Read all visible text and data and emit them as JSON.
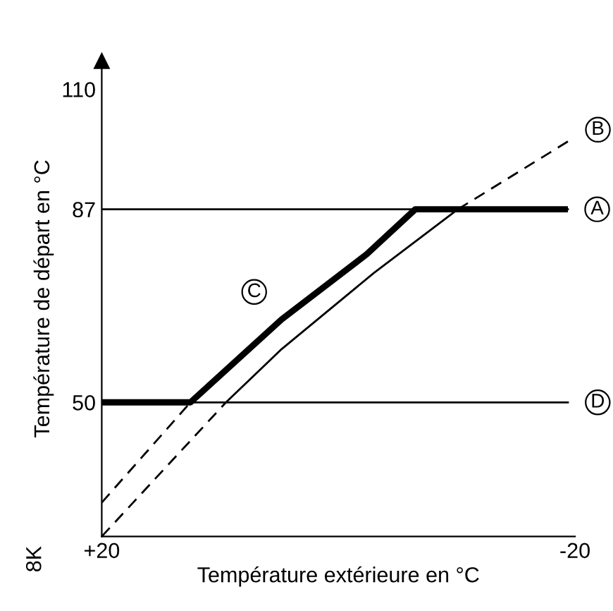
{
  "chart_data": {
    "type": "line",
    "xlabel": "Température extérieure en °C",
    "ylabel": "Température de départ en °C",
    "xlim": [
      20,
      -20
    ],
    "ylim": [
      24.3,
      115.4
    ],
    "xticks": [
      {
        "value": 20,
        "label": "+20"
      },
      -20
    ],
    "yticks": [
      50,
      87,
      110
    ],
    "grid": false,
    "legend": false,
    "marker": "none",
    "series": [
      {
        "name": "C",
        "color": "#000000",
        "x": [
          20,
          12.5,
          4.8,
          -2.4,
          -6.5,
          -19.4
        ],
        "values": [
          50,
          50,
          65.9,
          78.4,
          87,
          87
        ],
        "line_style": "solid"
      },
      {
        "color": "#000000",
        "x": [
          20,
          12.5
        ],
        "values": [
          30.8,
          50
        ],
        "line_style": "dashed"
      },
      {
        "color": "#000000",
        "x": [
          20,
          9.5
        ],
        "values": [
          24.3,
          50
        ],
        "line_style": "dashed"
      },
      {
        "color": "#000000",
        "x": [
          9.5,
          4.8,
          -3.0,
          -10.1
        ],
        "values": [
          50,
          60.2,
          74.8,
          87
        ],
        "line_style": "solid"
      },
      {
        "name": "B",
        "color": "#000000",
        "x": [
          -10.1,
          -19.4
        ],
        "values": [
          87,
          100
        ],
        "line_style": "dashed"
      }
    ],
    "ref_lines": [
      {
        "axis": "y",
        "value": 87,
        "color": "#000000",
        "label": "A"
      },
      {
        "axis": "y",
        "value": 50,
        "color": "#000000",
        "label": "D"
      }
    ],
    "annotations": [
      "8K"
    ]
  }
}
